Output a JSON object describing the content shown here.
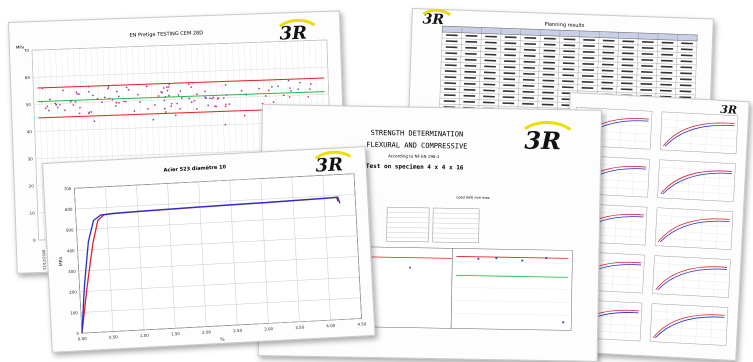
{
  "logo": {
    "text": "3R"
  },
  "sheet1": {
    "title": "EN Pretige TESTING CEM 28D",
    "unit": "MPa",
    "yticks": [
      "70",
      "60",
      "50",
      "40",
      "30",
      "20",
      "10",
      "0"
    ],
    "xdates": [
      "01/12/2008",
      "11/02/2009",
      "10/03/2009",
      "15/05/2009"
    ]
  },
  "sheet2": {
    "title": "Planning results"
  },
  "sheet3": {
    "line1": "STRENGTH DETERMINATION",
    "line2": "FLEXURAL AND COMPRESSIVE",
    "line3": "According to NF EN 196-1",
    "line4": "Test on specimen 4 x 4 x 16",
    "subhead": "Load (kN) min max"
  },
  "sheet5": {
    "title": "Acier 523 diamètre 10",
    "ylabel": "MPa",
    "xlabel": "%",
    "yticks": [
      "700",
      "600",
      "500",
      "400",
      "300",
      "200",
      "100",
      "0"
    ],
    "xticks": [
      "0.00",
      "0.50",
      "1.00",
      "1.50",
      "2.00",
      "2.50",
      "3.00",
      "3.50",
      "4.00",
      "4.50"
    ]
  },
  "colors": {
    "logo_yellow": "#e9df00",
    "curve_red": "#e0202a",
    "curve_blue": "#2030d0",
    "band_red": "#ee1c1c",
    "band_green": "#22bb44"
  },
  "chart_data": {
    "type": "line",
    "title": "Acier 523 diamètre 10",
    "xlabel": "%",
    "ylabel": "MPa",
    "xlim": [
      0,
      4.5
    ],
    "ylim": [
      0,
      700
    ],
    "series": [
      {
        "x": [
          0.0,
          0.12,
          0.25,
          0.35,
          0.45,
          0.6,
          1.0,
          2.0,
          3.0,
          4.0,
          4.2,
          4.22
        ],
        "y": [
          0,
          220,
          430,
          540,
          565,
          568,
          572,
          578,
          582,
          588,
          590,
          570
        ]
      },
      {
        "x": [
          0.0,
          0.08,
          0.18,
          0.28,
          0.4,
          0.6,
          1.0,
          2.0,
          3.0,
          4.0,
          4.22,
          4.25
        ],
        "y": [
          0,
          230,
          440,
          540,
          565,
          569,
          573,
          579,
          583,
          589,
          591,
          560
        ]
      }
    ]
  }
}
